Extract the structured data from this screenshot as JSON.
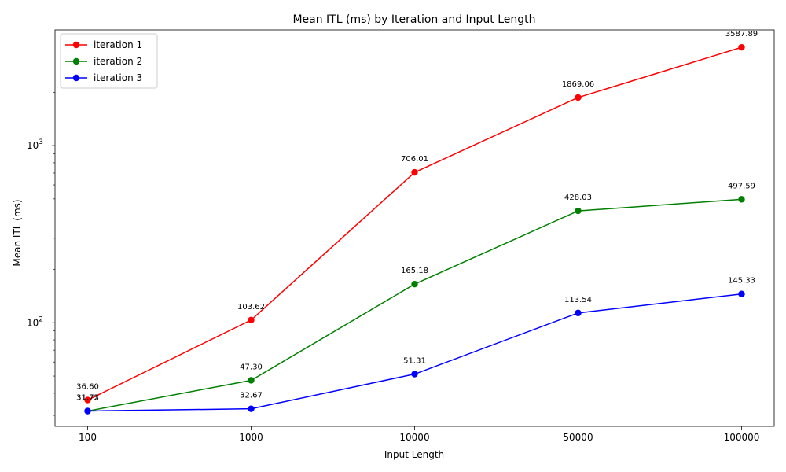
{
  "chart_data": {
    "type": "line",
    "title": "Mean ITL (ms) by Iteration and Input Length",
    "xlabel": "Input Length",
    "ylabel": "Mean ITL (ms)",
    "y_scale": "log",
    "x_scale": "categorical",
    "categories": [
      "100",
      "1000",
      "10000",
      "50000",
      "100000"
    ],
    "y_major_ticks": [
      {
        "value": 100,
        "label": "10",
        "exp": "2"
      },
      {
        "value": 1000,
        "label": "10",
        "exp": "3"
      }
    ],
    "ylim": [
      26,
      4500
    ],
    "grid": false,
    "legend_position": "upper-left",
    "series": [
      {
        "name": "iteration 1",
        "color": "#ff0000",
        "values": [
          36.6,
          103.62,
          706.01,
          1869.06,
          3587.89
        ],
        "labels": [
          "36.60",
          "103.62",
          "706.01",
          "1869.06",
          "3587.89"
        ]
      },
      {
        "name": "iteration 2",
        "color": "#008000",
        "values": [
          31.72,
          47.3,
          165.18,
          428.03,
          497.59
        ],
        "labels": [
          "31.72",
          "47.30",
          "165.18",
          "428.03",
          "497.59"
        ]
      },
      {
        "name": "iteration 3",
        "color": "#0000ff",
        "values": [
          31.73,
          32.67,
          51.31,
          113.54,
          145.33
        ],
        "labels": [
          "31.73",
          "32.67",
          "51.31",
          "113.54",
          "145.33"
        ]
      }
    ]
  }
}
